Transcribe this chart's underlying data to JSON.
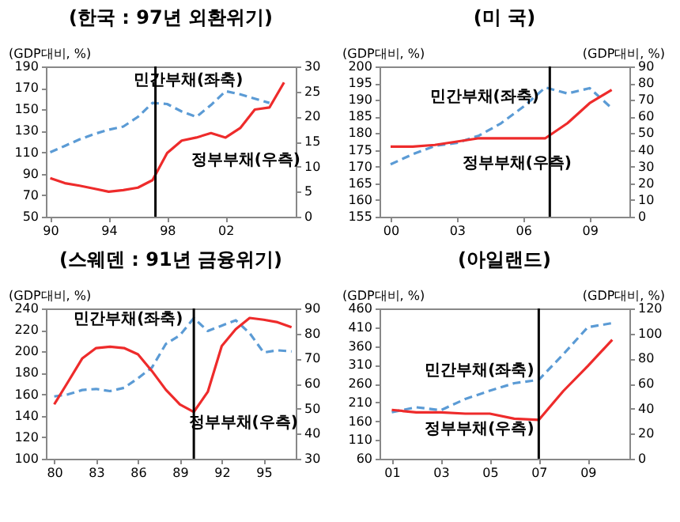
{
  "chart_data": [
    {
      "type": "line",
      "title": "(한국 : 97년 외환위기)",
      "ylabel": "(GDP대비, %)",
      "x": [
        1990,
        1991,
        1992,
        1993,
        1994,
        1995,
        1996,
        1997,
        1998,
        1999,
        2000,
        2001,
        2002,
        2003,
        2004,
        2005,
        2006
      ],
      "xlim": [
        1989.7,
        2006.8
      ],
      "xticks": [
        {
          "value": 1990,
          "label": "90"
        },
        {
          "value": 1994,
          "label": "94"
        },
        {
          "value": 1998,
          "label": "98"
        },
        {
          "value": 2002,
          "label": "02"
        }
      ],
      "ylim": [
        50,
        190
      ],
      "yticks": [
        50,
        70,
        90,
        110,
        130,
        150,
        170,
        190
      ],
      "y2lim": [
        0,
        30
      ],
      "y2ticks": [
        0,
        5,
        10,
        15,
        20,
        25,
        30
      ],
      "series": [
        {
          "color": "#5b9bd5",
          "line_style": "dashed",
          "values": [
            110,
            116,
            122,
            127,
            131,
            134,
            143,
            156,
            155,
            148,
            143,
            154,
            167,
            164,
            160,
            156,
            null
          ]
        },
        {
          "color": "#ee2b2b",
          "line_style": "solid",
          "axis": "y2",
          "values": [
            7.7,
            6.7,
            6.2,
            5.6,
            5.0,
            5.3,
            5.8,
            7.3,
            12.7,
            15.2,
            15.8,
            16.7,
            15.8,
            17.7,
            21.4,
            21.8,
            26.8
          ]
        }
      ],
      "ref_lines": [
        {
          "axis": "x",
          "value": 1997.2,
          "color": "#000000"
        }
      ],
      "annotations": [
        "민간부채(좌축)",
        "정부부채(우측)"
      ]
    },
    {
      "type": "line",
      "title": "(미 국)",
      "ylabel": "(GDP대비, %)",
      "y2label": "(GDP대비, %)",
      "x": [
        2000,
        2001,
        2002,
        2003,
        2004,
        2005,
        2006,
        2007,
        2008,
        2009,
        2010
      ],
      "xlim": [
        1999.5,
        2010.8
      ],
      "xticks": [
        {
          "value": 2000,
          "label": "00"
        },
        {
          "value": 2003,
          "label": "03"
        },
        {
          "value": 2006,
          "label": "06"
        },
        {
          "value": 2009,
          "label": "09"
        }
      ],
      "ylim": [
        155,
        200
      ],
      "yticks": [
        155,
        160,
        165,
        170,
        175,
        180,
        185,
        190,
        195,
        200
      ],
      "y2lim": [
        0,
        90
      ],
      "y2ticks": [
        0,
        10,
        20,
        30,
        40,
        50,
        60,
        70,
        80,
        90
      ],
      "series": [
        {
          "color": "#5b9bd5",
          "line_style": "dashed",
          "values": [
            170.7,
            173.7,
            176.2,
            177.1,
            179.3,
            183,
            187.9,
            193.7,
            191.9,
            193.5,
            187.5
          ]
        },
        {
          "color": "#ee2b2b",
          "line_style": "solid",
          "axis": "y2",
          "values": [
            42,
            42,
            43,
            45,
            47,
            47,
            47,
            47,
            56,
            68,
            76
          ]
        }
      ],
      "ref_lines": [
        {
          "axis": "x",
          "value": 2007.2,
          "color": "#000000"
        }
      ],
      "annotations": [
        "민간부채(좌축)",
        "정부부채(우측)"
      ]
    },
    {
      "type": "line",
      "title": "(스웨덴 : 91년 금융위기)",
      "ylabel": "(GDP대비, %)",
      "x": [
        1980,
        1981,
        1982,
        1983,
        1984,
        1985,
        1986,
        1987,
        1988,
        1989,
        1990,
        1991,
        1992,
        1993,
        1994,
        1995,
        1996,
        1997
      ],
      "xlim": [
        1979.4,
        1997.3
      ],
      "xticks": [
        {
          "value": 1980,
          "label": "80"
        },
        {
          "value": 1983,
          "label": "83"
        },
        {
          "value": 1986,
          "label": "86"
        },
        {
          "value": 1989,
          "label": "89"
        },
        {
          "value": 1992,
          "label": "92"
        },
        {
          "value": 1995,
          "label": "95"
        }
      ],
      "ylim": [
        100,
        240
      ],
      "yticks": [
        100,
        120,
        140,
        160,
        180,
        200,
        220,
        240
      ],
      "y2lim": [
        30,
        90
      ],
      "y2ticks": [
        30,
        40,
        50,
        60,
        70,
        80,
        90
      ],
      "series": [
        {
          "color": "#5b9bd5",
          "line_style": "dashed",
          "values": [
            158,
            160,
            164,
            165,
            163,
            166,
            175,
            185,
            207,
            215,
            231,
            219,
            224,
            229,
            217,
            199,
            201,
            200
          ]
        },
        {
          "color": "#ee2b2b",
          "line_style": "solid",
          "axis": "y2",
          "values": [
            51.7,
            60.8,
            70,
            74.2,
            74.7,
            74.2,
            71.7,
            65,
            57.5,
            51.7,
            48.7,
            56.7,
            75,
            81.7,
            86.2,
            85.5,
            84.5,
            82.5
          ]
        }
      ],
      "ref_lines": [
        {
          "axis": "x",
          "value": 1990,
          "color": "#000000"
        }
      ],
      "annotations": [
        "민간부채(좌축)",
        "정부부채(우측)"
      ]
    },
    {
      "type": "line",
      "title": "(아일랜드)",
      "ylabel": "(GDP대비, %)",
      "y2label": "(GDP대비, %)",
      "x": [
        2001,
        2002,
        2003,
        2004,
        2005,
        2006,
        2007,
        2008,
        2009,
        2010
      ],
      "xlim": [
        2000.5,
        2010.7
      ],
      "xticks": [
        {
          "value": 2001,
          "label": "01"
        },
        {
          "value": 2003,
          "label": "03"
        },
        {
          "value": 2005,
          "label": "05"
        },
        {
          "value": 2007,
          "label": "07"
        },
        {
          "value": 2009,
          "label": "09"
        }
      ],
      "ylim": [
        60,
        460
      ],
      "yticks": [
        60,
        110,
        160,
        210,
        260,
        310,
        360,
        410,
        460
      ],
      "y2lim": [
        0,
        120
      ],
      "y2ticks": [
        0,
        20,
        40,
        60,
        80,
        100,
        120
      ],
      "series": [
        {
          "color": "#5b9bd5",
          "line_style": "dashed",
          "values": [
            184,
            197,
            189,
            219,
            241,
            261,
            270,
            338,
            410,
            421
          ]
        },
        {
          "color": "#ee2b2b",
          "line_style": "solid",
          "axis": "y2",
          "values": [
            39,
            37,
            37,
            36,
            36,
            32,
            31,
            54,
            74,
            95
          ]
        }
      ],
      "ref_lines": [
        {
          "axis": "x",
          "value": 2007,
          "color": "#000000"
        }
      ],
      "annotations": [
        "민간부채(좌축)",
        "정부부채(우측)"
      ]
    }
  ]
}
